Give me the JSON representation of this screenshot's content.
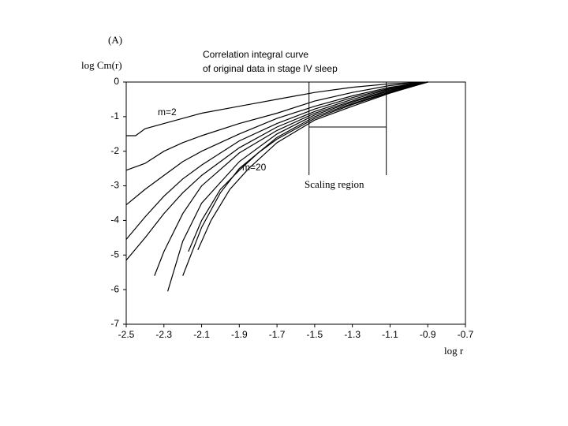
{
  "chart_data": {
    "type": "line",
    "panel_label": "(A)",
    "title": [
      "Correlation integral curve",
      "of original data in stage IV sleep"
    ],
    "y_label": "log Cm(r)",
    "x_label": "log r",
    "xlim": [
      -2.5,
      -0.7
    ],
    "ylim": [
      -7,
      0
    ],
    "xticks": [
      -2.5,
      -2.3,
      -2.1,
      -1.9,
      -1.7,
      -1.5,
      -1.3,
      -1.1,
      -0.9,
      -0.7
    ],
    "yticks": [
      0,
      -1,
      -2,
      -3,
      -4,
      -5,
      -6,
      -7
    ],
    "annotations": [
      "m=2",
      "m=20"
    ],
    "scaling_region": {
      "label": "Scaling region",
      "x": [
        -1.53,
        -1.12
      ]
    },
    "series": [
      {
        "color": "#000000",
        "x": [
          -2.5,
          -2.45,
          -2.4,
          -2.3,
          -2.2,
          -2.1,
          -1.9,
          -1.7,
          -1.5,
          -1.3,
          -1.1,
          -0.9
        ],
        "values": [
          -1.55,
          -1.55,
          -1.35,
          -1.2,
          -1.05,
          -0.9,
          -0.7,
          -0.5,
          -0.3,
          -0.15,
          -0.05,
          0
        ]
      },
      {
        "color": "#000000",
        "x": [
          -2.5,
          -2.4,
          -2.3,
          -2.2,
          -2.1,
          -1.9,
          -1.7,
          -1.5,
          -1.3,
          -1.1,
          -0.9
        ],
        "values": [
          -2.55,
          -2.35,
          -2.0,
          -1.75,
          -1.55,
          -1.2,
          -0.9,
          -0.55,
          -0.3,
          -0.1,
          0
        ]
      },
      {
        "color": "#000000",
        "x": [
          -2.5,
          -2.4,
          -2.3,
          -2.2,
          -2.1,
          -1.9,
          -1.7,
          -1.5,
          -1.3,
          -1.1,
          -0.9
        ],
        "values": [
          -3.55,
          -3.1,
          -2.7,
          -2.3,
          -2.0,
          -1.5,
          -1.05,
          -0.7,
          -0.4,
          -0.15,
          0
        ]
      },
      {
        "color": "#000000",
        "x": [
          -2.5,
          -2.4,
          -2.3,
          -2.2,
          -2.1,
          -1.9,
          -1.7,
          -1.5,
          -1.3,
          -1.1,
          -0.9
        ],
        "values": [
          -4.55,
          -3.9,
          -3.3,
          -2.8,
          -2.4,
          -1.7,
          -1.2,
          -0.78,
          -0.45,
          -0.18,
          0
        ]
      },
      {
        "color": "#000000",
        "x": [
          -2.5,
          -2.4,
          -2.3,
          -2.2,
          -2.1,
          -1.9,
          -1.7,
          -1.5,
          -1.3,
          -1.1,
          -0.9
        ],
        "values": [
          -5.15,
          -4.5,
          -3.8,
          -3.2,
          -2.7,
          -1.9,
          -1.3,
          -0.85,
          -0.5,
          -0.2,
          0
        ]
      },
      {
        "color": "#000000",
        "x": [
          -2.35,
          -2.3,
          -2.2,
          -2.1,
          -1.9,
          -1.7,
          -1.5,
          -1.3,
          -1.1,
          -0.9
        ],
        "values": [
          -5.6,
          -4.9,
          -3.8,
          -3.0,
          -2.05,
          -1.4,
          -0.9,
          -0.55,
          -0.23,
          0
        ]
      },
      {
        "color": "#000000",
        "x": [
          -2.28,
          -2.2,
          -2.1,
          -1.9,
          -1.7,
          -1.5,
          -1.3,
          -1.1,
          -0.9
        ],
        "values": [
          -6.05,
          -4.6,
          -3.5,
          -2.3,
          -1.5,
          -0.95,
          -0.58,
          -0.25,
          0
        ]
      },
      {
        "color": "#000000",
        "x": [
          -2.2,
          -2.1,
          -2.0,
          -1.9,
          -1.7,
          -1.5,
          -1.3,
          -1.1,
          -0.9
        ],
        "values": [
          -5.6,
          -4.2,
          -3.2,
          -2.5,
          -1.6,
          -1.0,
          -0.62,
          -0.28,
          0
        ]
      },
      {
        "color": "#000000",
        "x": [
          -2.17,
          -2.1,
          -2.0,
          -1.9,
          -1.8,
          -1.7,
          -1.5,
          -1.3,
          -1.1,
          -0.9
        ],
        "values": [
          -4.9,
          -4.0,
          -3.1,
          -2.55,
          -2.05,
          -1.65,
          -1.05,
          -0.65,
          -0.3,
          0
        ]
      },
      {
        "color": "#000000",
        "x": [
          -2.12,
          -2.05,
          -1.95,
          -1.85,
          -1.7,
          -1.5,
          -1.3,
          -1.1,
          -0.9
        ],
        "values": [
          -4.85,
          -4.0,
          -3.1,
          -2.5,
          -1.75,
          -1.1,
          -0.7,
          -0.32,
          0
        ]
      }
    ]
  }
}
